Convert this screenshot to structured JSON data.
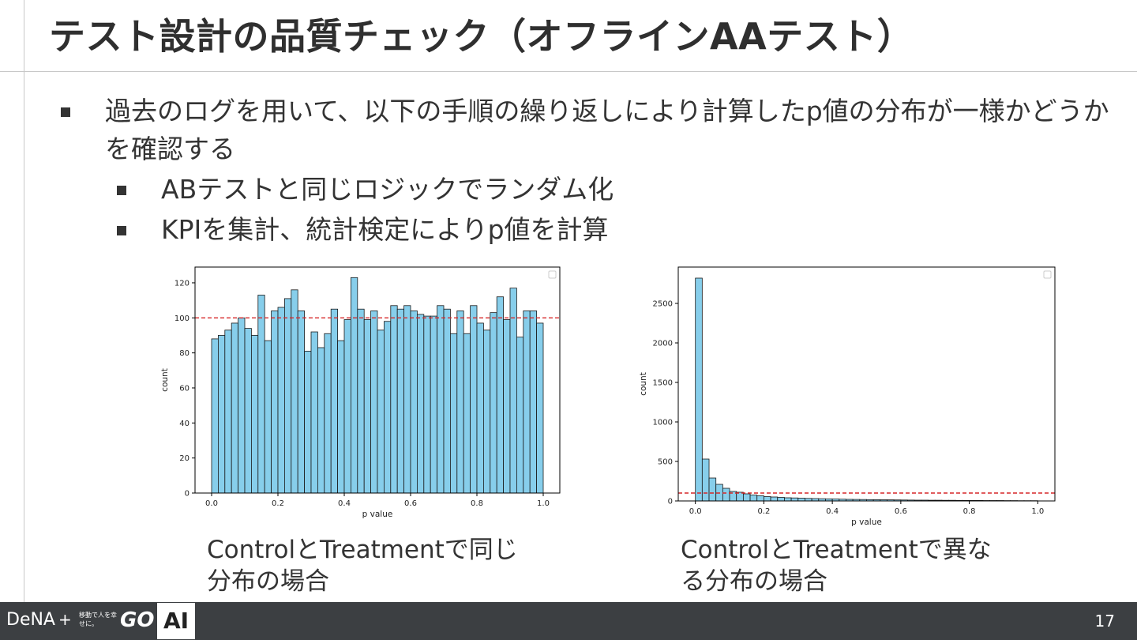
{
  "slide": {
    "title": "テスト設計の品質チェック（オフラインAAテスト）",
    "bullets": [
      "過去のログを用いて、以下の手順の繰り返しにより計算したp値の分布が一様かどうかを確認する",
      "ABテストと同じロジックでランダム化",
      "KPIを集計、統計検定によりp値を計算"
    ],
    "captions": [
      "ControlとTreatmentで同じ\n分布の場合",
      "ControlとTreatmentで異な\nる分布の場合"
    ],
    "footer": {
      "brand": "DeNA",
      "plus": "+",
      "go_tagline": "移動で人を幸せに。",
      "go_logo": "GO",
      "ai_label": "AI",
      "page_number": "17"
    }
  },
  "chart_data": [
    {
      "type": "bar",
      "xlabel": "p value",
      "ylabel": "count",
      "xlim": [
        -0.05,
        1.05
      ],
      "ylim": [
        0,
        129
      ],
      "xticks": [
        "0.0",
        "0.2",
        "0.4",
        "0.6",
        "0.8",
        "1.0"
      ],
      "yticks": [
        "0",
        "20",
        "40",
        "60",
        "80",
        "100",
        "120"
      ],
      "bin_width": 0.02,
      "values": [
        88,
        90,
        93,
        97,
        100,
        94,
        90,
        113,
        87,
        104,
        106,
        111,
        116,
        104,
        81,
        92,
        83,
        91,
        105,
        87,
        99,
        123,
        105,
        99,
        104,
        93,
        98,
        107,
        105,
        107,
        104,
        102,
        101,
        101,
        107,
        105,
        91,
        104,
        91,
        107,
        97,
        93,
        103,
        112,
        99,
        117,
        89,
        104,
        104,
        97
      ],
      "reference_line": 100,
      "bar_color": "#87ceeb",
      "line_color": "#d62728"
    },
    {
      "type": "bar",
      "xlabel": "p value",
      "ylabel": "count",
      "xlim": [
        -0.05,
        1.05
      ],
      "ylim": [
        0,
        2960
      ],
      "xticks": [
        "0.0",
        "0.2",
        "0.4",
        "0.6",
        "0.8",
        "1.0"
      ],
      "yticks": [
        "0",
        "500",
        "1000",
        "1500",
        "2000",
        "2500"
      ],
      "bin_width": 0.02,
      "values": [
        2820,
        530,
        290,
        210,
        160,
        120,
        110,
        90,
        75,
        65,
        55,
        50,
        45,
        40,
        38,
        35,
        32,
        30,
        28,
        26,
        24,
        22,
        20,
        19,
        18,
        17,
        16,
        15,
        14,
        13,
        12,
        11,
        10,
        10,
        9,
        9,
        8,
        8,
        7,
        7,
        6,
        6,
        5,
        5,
        5,
        4,
        4,
        3,
        3,
        3
      ],
      "reference_line": 100,
      "bar_color": "#87ceeb",
      "line_color": "#d62728"
    }
  ]
}
